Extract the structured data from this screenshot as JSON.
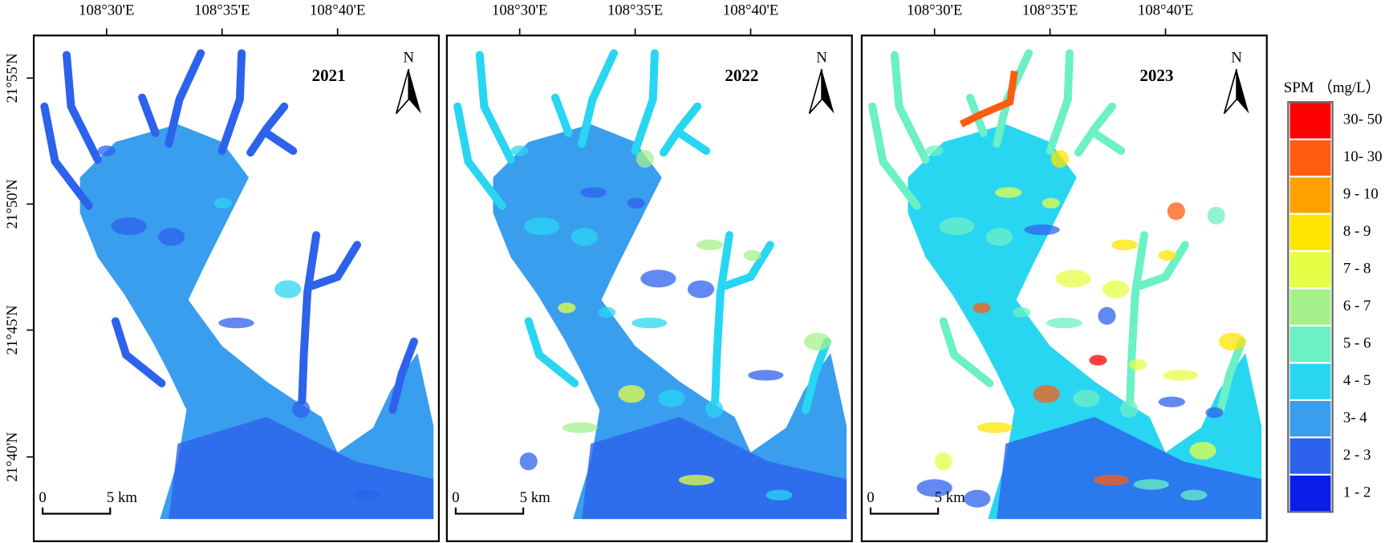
{
  "panels": [
    {
      "year": "2021"
    },
    {
      "year": "2022"
    },
    {
      "year": "2023"
    }
  ],
  "longitude_labels": [
    "108°30'E",
    "108°35'E",
    "108°40'E"
  ],
  "latitude_labels": [
    "21°55'N",
    "21°50'N",
    "21°45'N",
    "21°40'N"
  ],
  "north_label": "N",
  "scale_bar": {
    "start": "0",
    "end": "5 km"
  },
  "legend": {
    "title": "SPM （mg/L）",
    "items": [
      {
        "label": "30- 50",
        "color": "#ff0000"
      },
      {
        "label": "10- 30",
        "color": "#ff5c10"
      },
      {
        "label": "9 - 10",
        "color": "#ffa200"
      },
      {
        "label": "8 - 9",
        "color": "#ffe600"
      },
      {
        "label": "7 - 8",
        "color": "#e6ff46"
      },
      {
        "label": "6 - 7",
        "color": "#a6f08c"
      },
      {
        "label": "5 - 6",
        "color": "#6cf0c6"
      },
      {
        "label": "4 - 5",
        "color": "#28d6f2"
      },
      {
        "label": "3- 4",
        "color": "#3a9eee"
      },
      {
        "label": "2 - 3",
        "color": "#2c62ec"
      },
      {
        "label": "1 - 2",
        "color": "#0a1ee8"
      }
    ]
  }
}
